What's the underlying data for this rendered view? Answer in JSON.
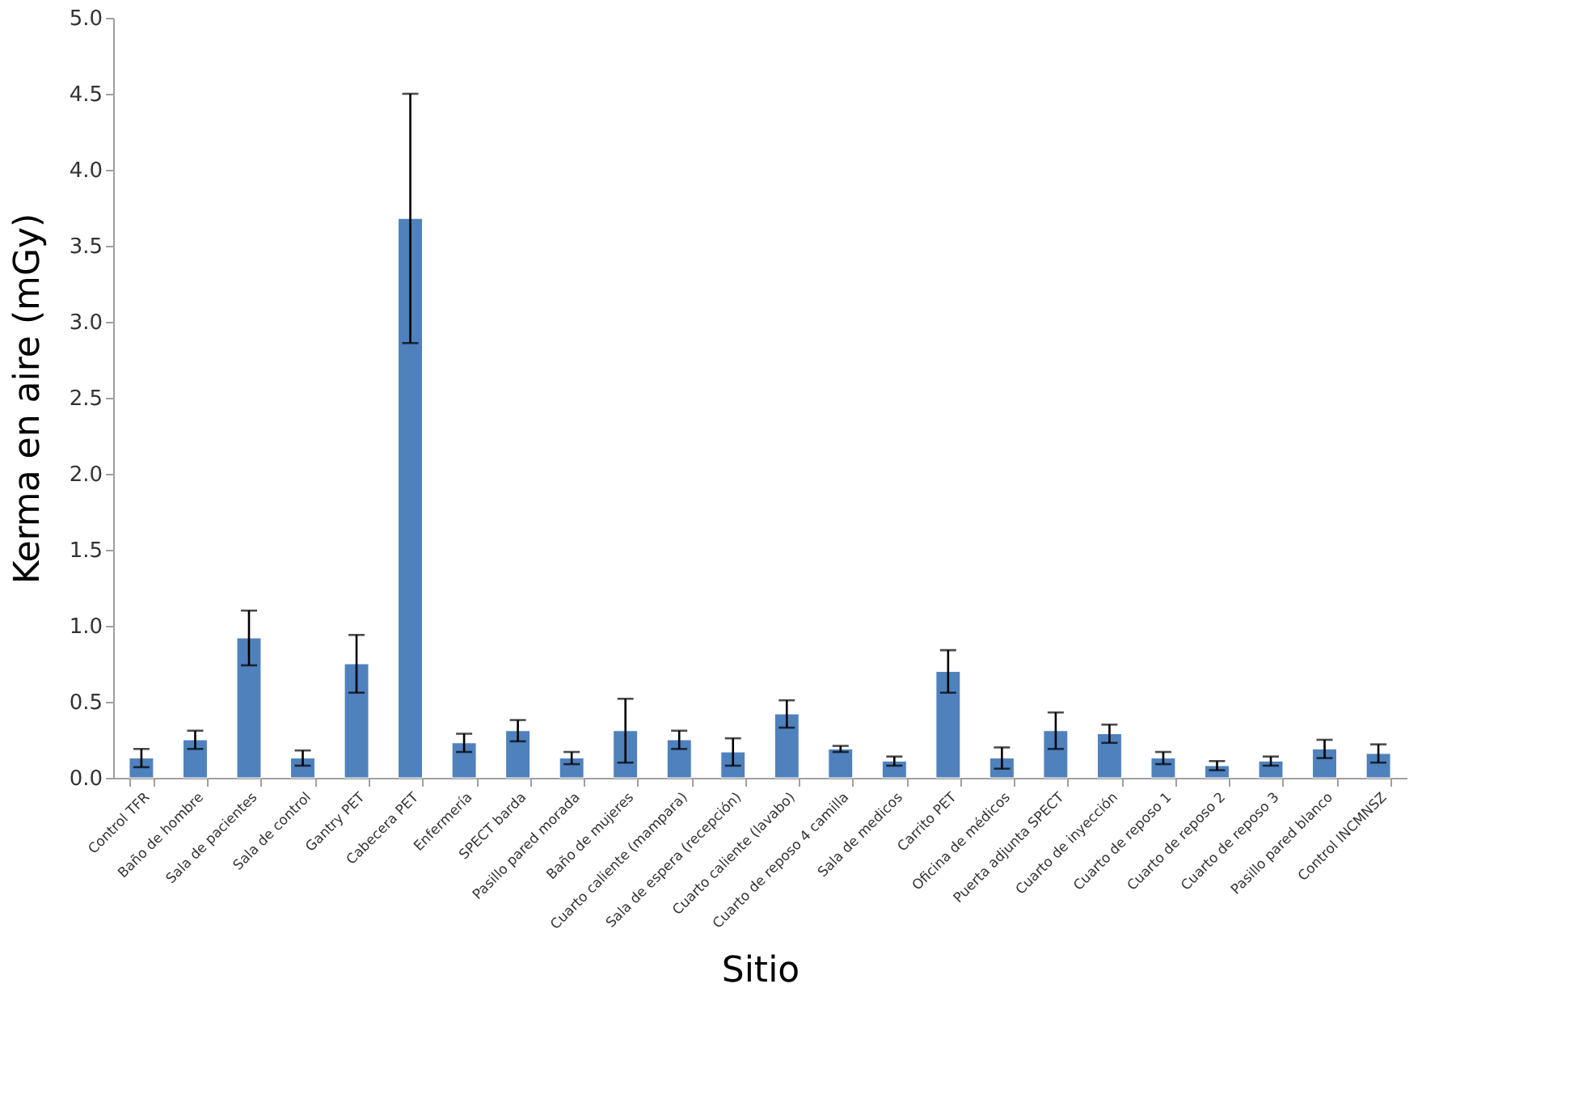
{
  "chart_data": {
    "type": "bar",
    "xlabel": "Sitio",
    "ylabel": "Kerma en aire (mGy)",
    "categories": [
      "Control TFR",
      "Baño de hombre",
      "Sala de pacientes",
      "Sala de control",
      "Gantry PET",
      "Cabecera PET",
      "Enfermería",
      "SPECT barda",
      "Pasillo pared morada",
      "Baño de mujeres",
      "Cuarto caliente (mampara)",
      "Sala de espera (recepción)",
      "Cuarto caliente (lavabo)",
      "Cuarto de reposo 4 camilla",
      "Sala de medicos",
      "Carrito PET",
      "Oficina de médicos",
      "Puerta adjunta SPECT",
      "Cuarto de inyección",
      "Cuarto de reposo 1",
      "Cuarto de reposo 2",
      "Cuarto de reposo 3",
      "Pasillo pared blanco",
      "Control INCMNSZ"
    ],
    "values": [
      0.13,
      0.25,
      0.92,
      0.13,
      0.75,
      3.68,
      0.23,
      0.31,
      0.13,
      0.31,
      0.25,
      0.17,
      0.42,
      0.19,
      0.11,
      0.7,
      0.13,
      0.31,
      0.29,
      0.13,
      0.08,
      0.11,
      0.19,
      0.16
    ],
    "errors": [
      0.06,
      0.06,
      0.18,
      0.05,
      0.19,
      0.82,
      0.06,
      0.07,
      0.04,
      0.21,
      0.06,
      0.09,
      0.09,
      0.02,
      0.03,
      0.14,
      0.07,
      0.12,
      0.06,
      0.04,
      0.03,
      0.03,
      0.06,
      0.06
    ],
    "color": "#4f81bd",
    "ylim": [
      0,
      5.0
    ],
    "yticks": [
      {
        "value": 0,
        "label": "0.0"
      },
      {
        "value": 0.5,
        "label": "0.5"
      },
      {
        "value": 1.0,
        "label": "1.0"
      },
      {
        "value": 1.5,
        "label": "1.5"
      },
      {
        "value": 2.0,
        "label": "2.0"
      },
      {
        "value": 2.5,
        "label": "2.5"
      },
      {
        "value": 3.0,
        "label": "3.0"
      },
      {
        "value": 3.5,
        "label": "3.5"
      },
      {
        "value": 4.0,
        "label": "4.0"
      },
      {
        "value": 4.5,
        "label": "4.5"
      },
      {
        "value": 5.0,
        "label": "5.0"
      }
    ],
    "grid": false
  }
}
